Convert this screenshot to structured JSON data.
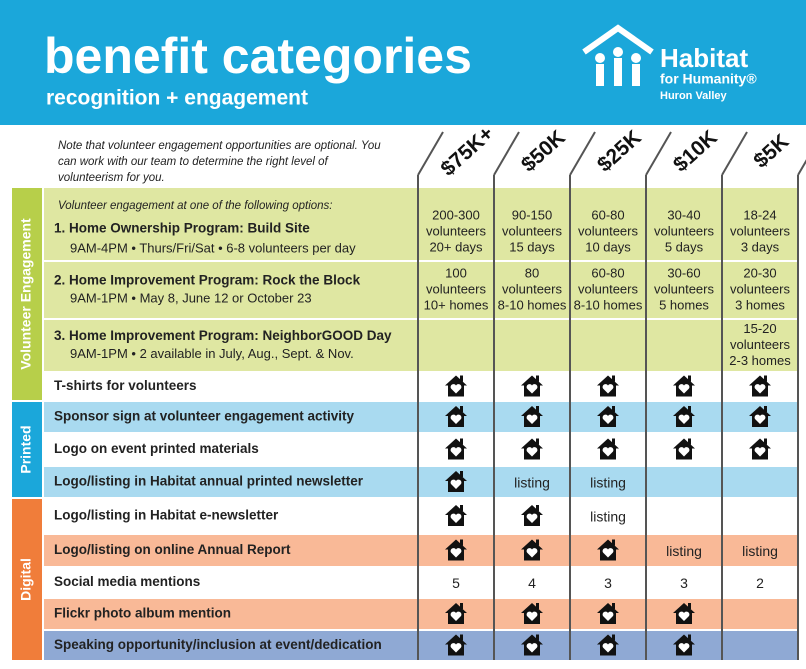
{
  "header": {
    "title": "benefit categories",
    "subtitle": "recognition + engagement",
    "logo": {
      "name": "Habitat",
      "line2": "for Humanity®",
      "line3": "Huron Valley"
    }
  },
  "note": [
    "Note that volunteer engagement opportunities are optional. You",
    "can work with our team to determine the right level of",
    "volunteerism for you."
  ],
  "columns": [
    "$75K+",
    "$50K",
    "$25K",
    "$10K",
    "$5K"
  ],
  "sections": [
    {
      "label": "Volunteer Engagement",
      "intro": "Volunteer engagement at one of the following options:",
      "rows": [
        {
          "title": "1. Home Ownership Program: Build Site",
          "detail": "9AM-4PM • Thurs/Fri/Sat • 6-8 volunteers per day",
          "cells": [
            [
              "200-300",
              "volunteers",
              "20+ days"
            ],
            [
              "90-150",
              "volunteers",
              "15 days"
            ],
            [
              "60-80",
              "volunteers",
              "10 days"
            ],
            [
              "30-40",
              "volunteers",
              "5 days"
            ],
            [
              "18-24",
              "volunteers",
              "3 days"
            ]
          ]
        },
        {
          "title": "2. Home Improvement Program: Rock the Block",
          "detail": "9AM-1PM • May 8, June 12 or October 23",
          "cells": [
            [
              "100",
              "volunteers",
              "10+ homes"
            ],
            [
              "80",
              "volunteers",
              "8-10 homes"
            ],
            [
              "60-80",
              "volunteers",
              "8-10 homes"
            ],
            [
              "30-60",
              "volunteers",
              "5 homes"
            ],
            [
              "20-30",
              "volunteers",
              "3 homes"
            ]
          ]
        },
        {
          "title": "3. Home Improvement Program: NeighborGOOD Day",
          "detail": "9AM-1PM • 2 available in July, Aug., Sept. & Nov.",
          "cells": [
            null,
            null,
            null,
            null,
            [
              "15-20",
              "volunteers",
              "2-3 homes"
            ]
          ]
        },
        {
          "title": "T-shirts for volunteers",
          "cells": [
            true,
            true,
            true,
            true,
            true
          ]
        }
      ]
    },
    {
      "label": "Printed",
      "rows": [
        {
          "title": "Sponsor sign at volunteer engagement  activity",
          "cells": [
            true,
            true,
            true,
            true,
            true
          ]
        },
        {
          "title": "Logo on event printed materials",
          "cells": [
            true,
            true,
            true,
            true,
            true
          ]
        },
        {
          "title": "Logo/listing in Habitat annual printed newsletter",
          "cells": [
            true,
            "listing",
            "listing",
            null,
            null
          ]
        }
      ]
    },
    {
      "label": "Digital",
      "rows": [
        {
          "title": "Logo/listing in Habitat e-newsletter",
          "cells": [
            true,
            true,
            "listing",
            null,
            null
          ]
        },
        {
          "title": "Logo/listing on online Annual Report",
          "cells": [
            true,
            true,
            true,
            "listing",
            "listing"
          ]
        },
        {
          "title": "Social media mentions",
          "cells": [
            "5",
            "4",
            "3",
            "3",
            "2"
          ]
        },
        {
          "title": "Flickr photo album mention",
          "cells": [
            true,
            true,
            true,
            true,
            null
          ]
        },
        {
          "title": "Speaking opportunity/inclusion at event/dedication",
          "cells": [
            true,
            true,
            true,
            true,
            null
          ]
        }
      ]
    }
  ]
}
